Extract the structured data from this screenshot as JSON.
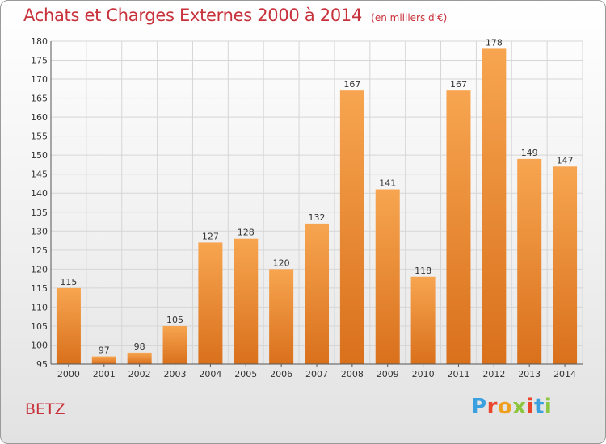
{
  "header": {
    "title": "Achats et Charges Externes 2000 à 2014",
    "unit": "(en milliers d'€)"
  },
  "footer": {
    "city": "BETZ",
    "logo_text": "Proxiti"
  },
  "colors": {
    "title": "#c8323c",
    "bar_light": "#f7a550",
    "bar_dark": "#d9701c",
    "logo_letters": [
      "#3aa0e0",
      "#e8452c",
      "#f0a020",
      "#8cc63f",
      "#e8452c",
      "#3aa0e0",
      "#8cc63f"
    ]
  },
  "chart_data": {
    "type": "bar",
    "categories": [
      "2000",
      "2001",
      "2002",
      "2003",
      "2004",
      "2005",
      "2006",
      "2007",
      "2008",
      "2009",
      "2010",
      "2011",
      "2012",
      "2013",
      "2014"
    ],
    "values": [
      115,
      97,
      98,
      105,
      127,
      128,
      120,
      132,
      167,
      141,
      118,
      167,
      178,
      149,
      147
    ],
    "ylim": [
      95,
      180
    ],
    "yticks": [
      95,
      100,
      105,
      110,
      115,
      120,
      125,
      130,
      135,
      140,
      145,
      150,
      155,
      160,
      165,
      170,
      175,
      180
    ],
    "grid": true,
    "data_labels": true
  }
}
